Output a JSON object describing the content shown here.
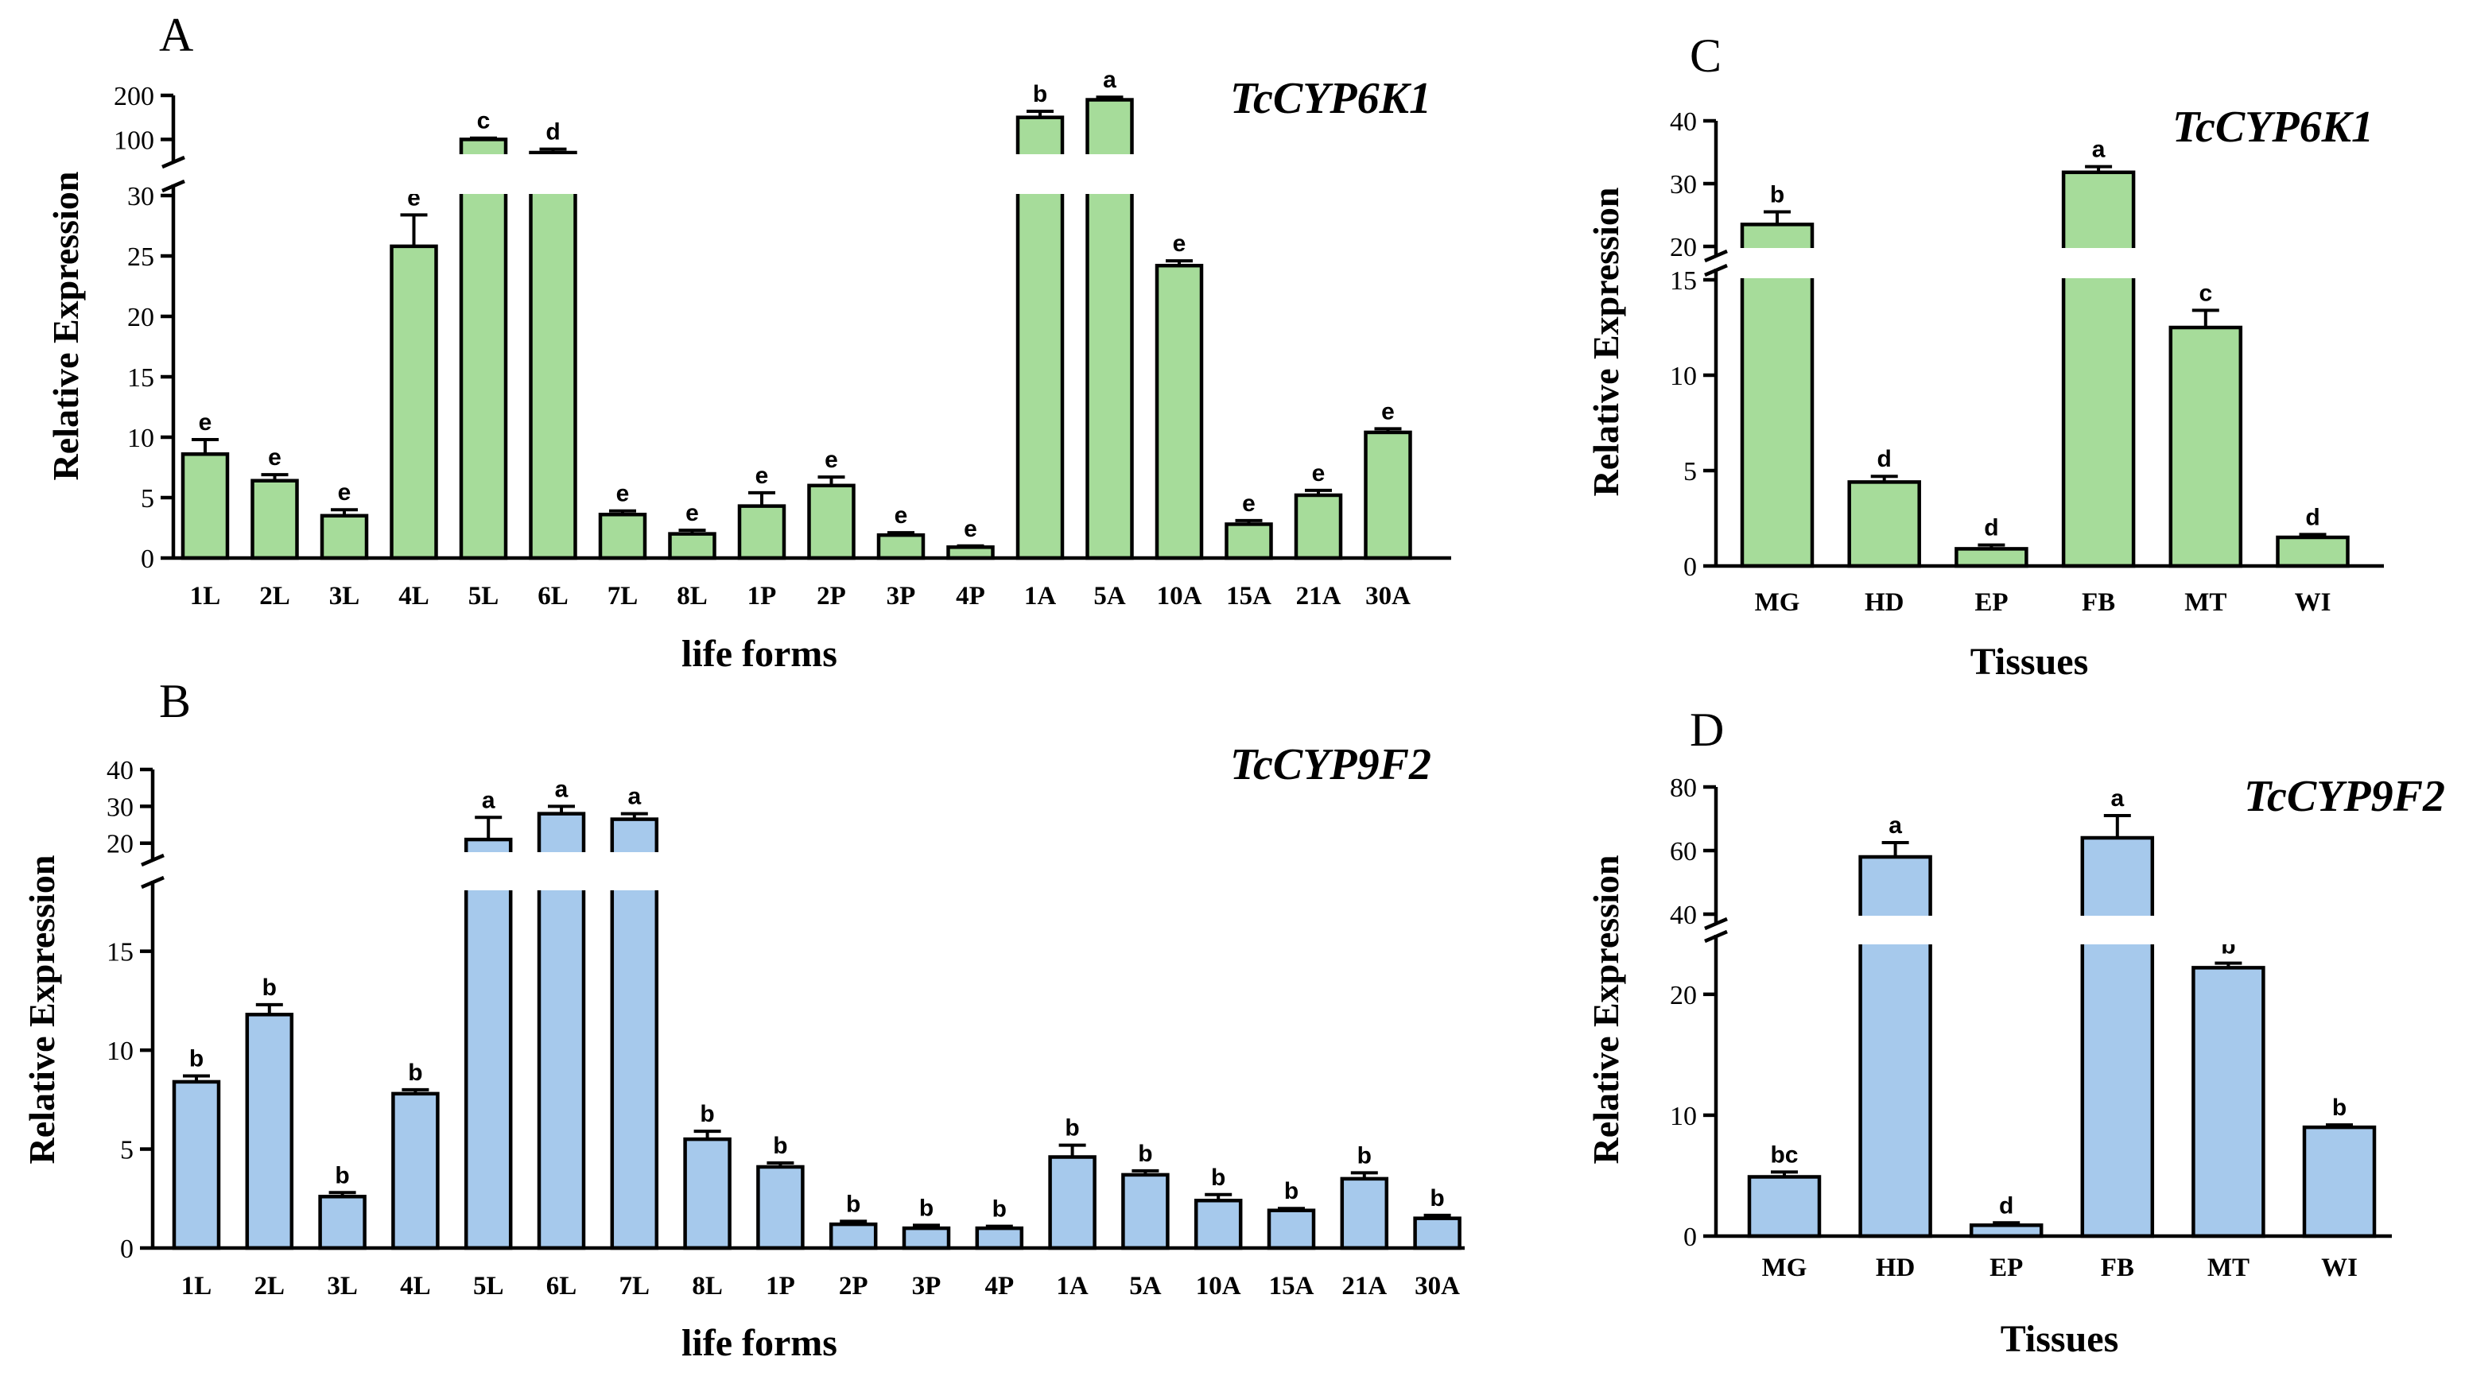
{
  "figure": {
    "bar_colors": {
      "green": "#a6dc9a",
      "blue": "#a6c9ec"
    }
  },
  "chart_data": [
    {
      "panel": "A",
      "type": "bar",
      "title": "TcCYP6K1",
      "xlabel": "life forms",
      "ylabel": "Relative Expression",
      "color": "#a6dc9a",
      "categories": [
        "1L",
        "2L",
        "3L",
        "4L",
        "5L",
        "6L",
        "7L",
        "8L",
        "1P",
        "2P",
        "3P",
        "4P",
        "1A",
        "5A",
        "10A",
        "15A",
        "21A",
        "30A"
      ],
      "values": [
        8.6,
        6.4,
        3.5,
        25.8,
        100,
        70,
        3.6,
        2.0,
        4.3,
        6.0,
        1.9,
        0.9,
        150,
        190,
        24.2,
        2.8,
        5.2,
        10.4
      ],
      "errors": [
        1.2,
        0.5,
        0.5,
        2.6,
        3,
        8,
        0.3,
        0.3,
        1.1,
        0.7,
        0.2,
        0.1,
        14,
        6,
        0.4,
        0.3,
        0.4,
        0.3
      ],
      "labels": [
        "e",
        "e",
        "e",
        "e",
        "c",
        "d",
        "e",
        "e",
        "e",
        "e",
        "e",
        "e",
        "b",
        "a",
        "e",
        "e",
        "e",
        "e"
      ],
      "y_axis": {
        "lower": {
          "range": [
            0,
            30
          ],
          "ticks": [
            0,
            5,
            10,
            15,
            20,
            25,
            30
          ]
        },
        "upper": {
          "range": [
            70,
            200
          ],
          "ticks": [
            100,
            200
          ]
        }
      }
    },
    {
      "panel": "B",
      "type": "bar",
      "title": "TcCYP9F2",
      "xlabel": "life forms",
      "ylabel": "Relative Expression",
      "color": "#a6c9ec",
      "categories": [
        "1L",
        "2L",
        "3L",
        "4L",
        "5L",
        "6L",
        "7L",
        "8L",
        "1P",
        "2P",
        "3P",
        "4P",
        "1A",
        "5A",
        "10A",
        "15A",
        "21A",
        "30A"
      ],
      "values": [
        8.4,
        11.8,
        2.6,
        7.8,
        21,
        28,
        26.5,
        5.5,
        4.1,
        1.2,
        1.0,
        1.0,
        4.6,
        3.7,
        2.4,
        1.9,
        3.5,
        1.5
      ],
      "errors": [
        0.3,
        0.5,
        0.2,
        0.2,
        6,
        2,
        1.5,
        0.4,
        0.2,
        0.15,
        0.15,
        0.1,
        0.6,
        0.2,
        0.3,
        0.1,
        0.3,
        0.15
      ],
      "labels": [
        "b",
        "b",
        "b",
        "b",
        "a",
        "a",
        "a",
        "b",
        "b",
        "b",
        "b",
        "b",
        "b",
        "b",
        "b",
        "b",
        "b",
        "b"
      ],
      "y_axis": {
        "lower": {
          "range": [
            0,
            18
          ],
          "ticks": [
            0,
            5,
            10,
            15
          ]
        },
        "upper": {
          "range": [
            18,
            40
          ],
          "ticks": [
            20,
            30,
            40
          ]
        }
      }
    },
    {
      "panel": "C",
      "type": "bar",
      "title": "TcCYP6K1",
      "xlabel": "Tissues",
      "ylabel": "Relative Expression",
      "color": "#a6dc9a",
      "categories": [
        "MG",
        "HD",
        "EP",
        "FB",
        "MT",
        "WI"
      ],
      "values": [
        23.5,
        4.4,
        0.9,
        31.8,
        12.5,
        1.5
      ],
      "errors": [
        2.0,
        0.3,
        0.2,
        0.9,
        0.9,
        0.15
      ],
      "labels": [
        "b",
        "d",
        "d",
        "a",
        "c",
        "d"
      ],
      "y_axis": {
        "lower": {
          "range": [
            0,
            15
          ],
          "ticks": [
            0,
            5,
            10,
            15
          ]
        },
        "upper": {
          "range": [
            20,
            40
          ],
          "ticks": [
            20,
            30,
            40
          ]
        }
      }
    },
    {
      "panel": "D",
      "type": "bar",
      "title": "TcCYP9F2",
      "xlabel": "Tissues",
      "ylabel": "Relative Expression",
      "color": "#a6c9ec",
      "categories": [
        "MG",
        "HD",
        "EP",
        "FB",
        "MT",
        "WI"
      ],
      "values": [
        4.9,
        58,
        0.9,
        64,
        22.2,
        9.0
      ],
      "errors": [
        0.4,
        4.5,
        0.2,
        7,
        2.4,
        0.2
      ],
      "labels": [
        "bc",
        "a",
        "d",
        "a",
        "b",
        "b"
      ],
      "y_axis": {
        "lower": {
          "range": [
            0,
            24
          ],
          "ticks": [
            0,
            10,
            20
          ]
        },
        "upper": {
          "range": [
            40,
            80
          ],
          "ticks": [
            40,
            60,
            80
          ]
        }
      }
    }
  ]
}
